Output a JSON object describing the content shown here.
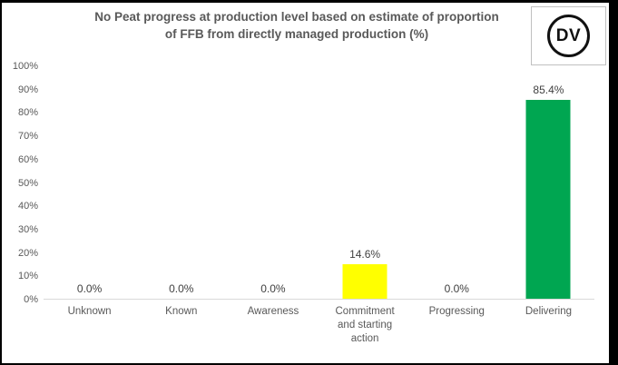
{
  "title": {
    "text": "No Peat progress at production level based on estimate of proportion of FFB from directly managed production (%)",
    "line1": "No Peat progress at production level based on estimate of proportion",
    "line2": "of FFB from directly managed production (%)",
    "color": "#595959"
  },
  "logo": {
    "text": "DV"
  },
  "colors": {
    "frame_border": "#000000",
    "axis_line": "#d9d9d9",
    "tick_text": "#595959",
    "value_label_text": "#404040",
    "bar_yellow": "#ffff00",
    "bar_green": "#00a651"
  },
  "chart_data": {
    "type": "bar",
    "title": "No Peat progress at production level based on estimate of proportion of FFB from directly managed production (%)",
    "categories": [
      "Unknown",
      "Known",
      "Awareness",
      "Commitment and starting action",
      "Progressing",
      "Delivering"
    ],
    "values": [
      0.0,
      0.0,
      0.0,
      14.6,
      0.0,
      85.4
    ],
    "value_labels": [
      "0.0%",
      "0.0%",
      "0.0%",
      "14.6%",
      "0.0%",
      "85.4%"
    ],
    "bar_colors": [
      null,
      null,
      null,
      "#ffff00",
      null,
      "#00a651"
    ],
    "xlabel": "",
    "ylabel": "",
    "ylim": [
      0,
      100
    ],
    "ytick_labels": [
      "0%",
      "10%",
      "20%",
      "30%",
      "40%",
      "50%",
      "60%",
      "70%",
      "80%",
      "90%",
      "100%"
    ],
    "grid": false,
    "legend": false,
    "data_labels": true
  }
}
